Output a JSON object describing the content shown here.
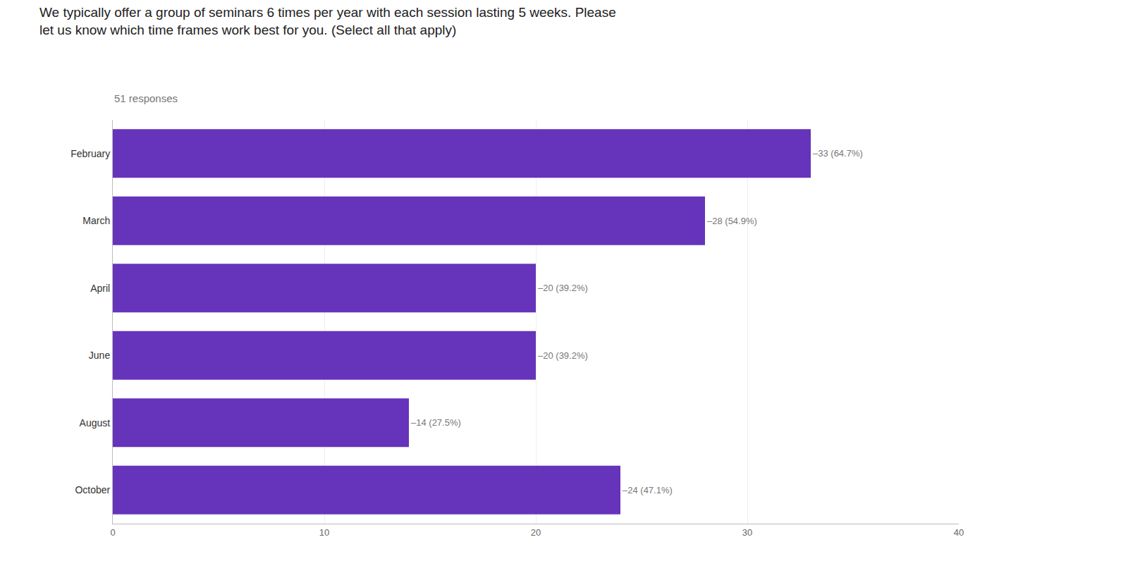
{
  "chart_data": {
    "type": "bar",
    "orientation": "horizontal",
    "title": "We typically offer a group of seminars 6 times per year with each session lasting 5 weeks. Please\nlet us know which time frames work best for you. (Select all that apply)",
    "subtitle": "51 responses",
    "categories": [
      "February",
      "March",
      "April",
      "June",
      "August",
      "October"
    ],
    "values": [
      33,
      28,
      20,
      20,
      14,
      24
    ],
    "value_labels": [
      "–33 (64.7%)",
      "–28 (54.9%)",
      "–20 (39.2%)",
      "–20 (39.2%)",
      "–14 (27.5%)",
      "–24 (47.1%)"
    ],
    "color": "#6633bb",
    "xlim": [
      0,
      40
    ],
    "xticks": [
      0,
      10,
      20,
      30,
      40
    ],
    "grid": true
  }
}
